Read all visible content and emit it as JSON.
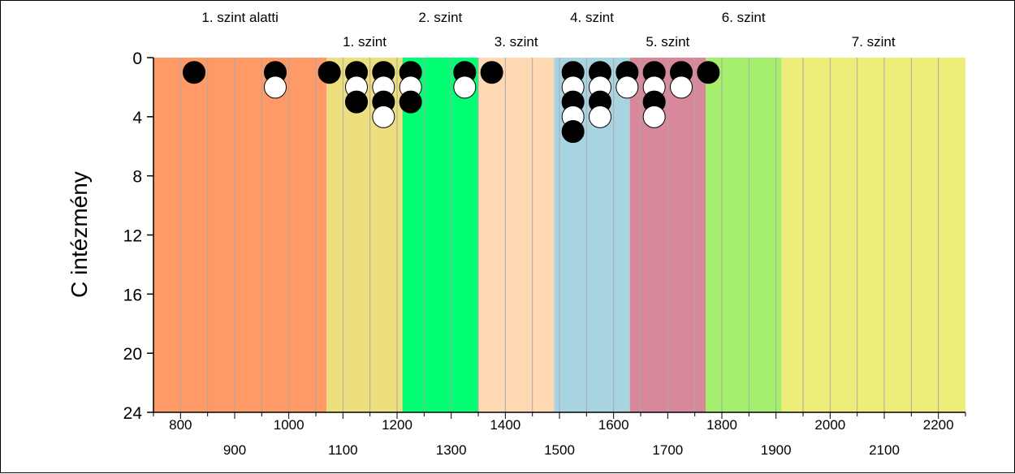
{
  "chart_data": {
    "type": "scatter",
    "ylabel": "C intézmény",
    "xlabel": "",
    "xlim": [
      750,
      2250
    ],
    "ylim": [
      0,
      24
    ],
    "y_inverted": true,
    "y_ticks": [
      "0",
      "4",
      "8",
      "12",
      "16",
      "20",
      "24"
    ],
    "x_ticks_top_row": [
      "800",
      "1000",
      "1200",
      "1400",
      "1600",
      "1800",
      "2000",
      "2200"
    ],
    "x_ticks_bottom_row": [
      "900",
      "1100",
      "1300",
      "1500",
      "1700",
      "1900",
      "2100"
    ],
    "grid": "vertical every 50",
    "bands": [
      {
        "label": "1. szint alatti",
        "from": 750,
        "to": 1070,
        "color": "#ff9966"
      },
      {
        "label": "1. szint",
        "from": 1070,
        "to": 1210,
        "color": "#eddf7e"
      },
      {
        "label": "2. szint",
        "from": 1210,
        "to": 1350,
        "color": "#00ff72"
      },
      {
        "label": "3. szint",
        "from": 1350,
        "to": 1490,
        "color": "#ffd9b3"
      },
      {
        "label": "4. szint",
        "from": 1490,
        "to": 1630,
        "color": "#a8d4e2"
      },
      {
        "label": "5. szint",
        "from": 1630,
        "to": 1770,
        "color": "#d8889a"
      },
      {
        "label": "6. szint",
        "from": 1770,
        "to": 1910,
        "color": "#a6ee6e"
      },
      {
        "label": "7. szint",
        "from": 1910,
        "to": 2250,
        "color": "#eded79"
      }
    ],
    "series": [
      {
        "name": "filled",
        "color": "#000000",
        "points": [
          [
            825,
            1
          ],
          [
            975,
            1
          ],
          [
            1075,
            1
          ],
          [
            1125,
            1
          ],
          [
            1125,
            3
          ],
          [
            1175,
            1
          ],
          [
            1175,
            3
          ],
          [
            1225,
            1
          ],
          [
            1225,
            3
          ],
          [
            1325,
            1
          ],
          [
            1375,
            1
          ],
          [
            1525,
            1
          ],
          [
            1525,
            3
          ],
          [
            1525,
            5
          ],
          [
            1575,
            1
          ],
          [
            1575,
            3
          ],
          [
            1625,
            1
          ],
          [
            1675,
            1
          ],
          [
            1675,
            3
          ],
          [
            1725,
            1
          ],
          [
            1775,
            1
          ]
        ]
      },
      {
        "name": "open",
        "color": "#ffffff",
        "points": [
          [
            975,
            2
          ],
          [
            1125,
            2
          ],
          [
            1175,
            2
          ],
          [
            1175,
            4
          ],
          [
            1225,
            2
          ],
          [
            1325,
            2
          ],
          [
            1525,
            2
          ],
          [
            1525,
            4
          ],
          [
            1575,
            2
          ],
          [
            1575,
            4
          ],
          [
            1625,
            2
          ],
          [
            1675,
            2
          ],
          [
            1675,
            4
          ],
          [
            1725,
            2
          ]
        ]
      }
    ]
  }
}
